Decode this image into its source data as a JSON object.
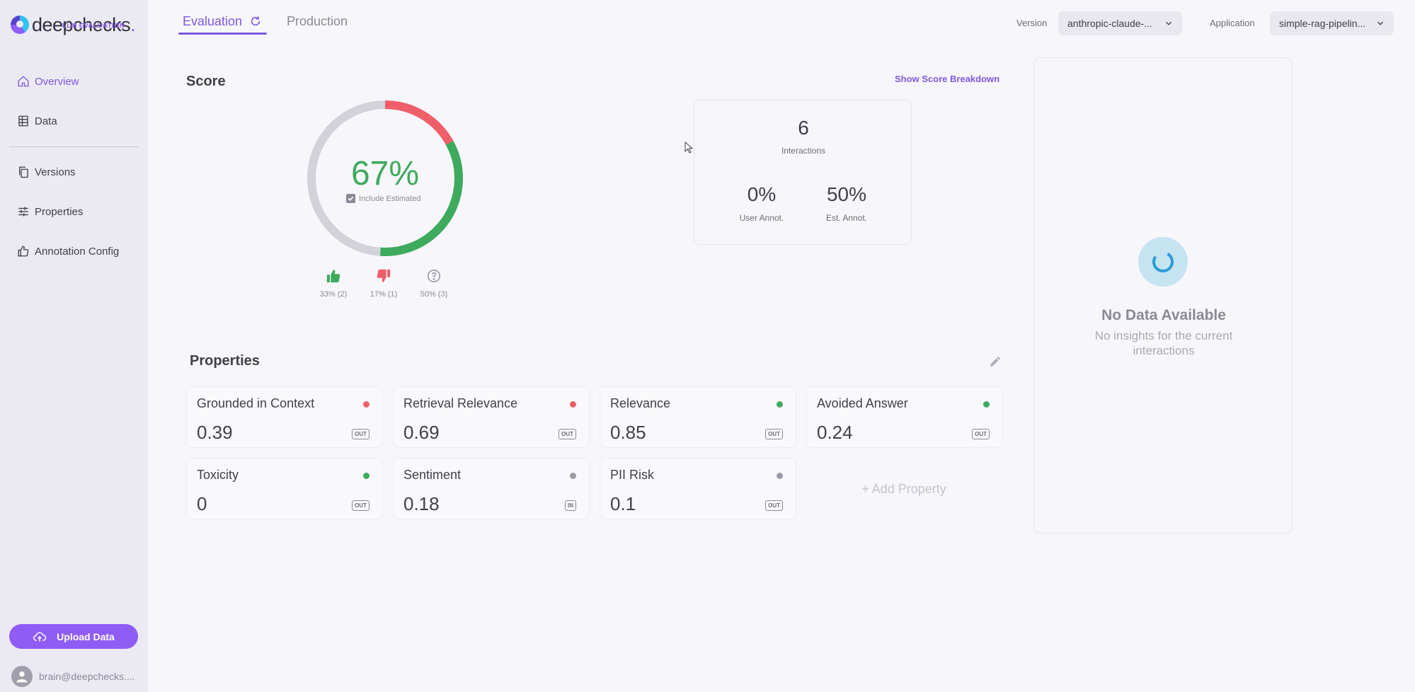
{
  "brand": {
    "name": "deepchecks",
    "dot": ".",
    "subtitle": "LLM EVALUATION"
  },
  "sidebar": {
    "items": [
      {
        "label": "Overview",
        "icon": "home-icon",
        "active": true
      },
      {
        "label": "Data",
        "icon": "table-icon"
      },
      {
        "label": "Versions",
        "icon": "copy-icon"
      },
      {
        "label": "Properties",
        "icon": "sliders-icon"
      },
      {
        "label": "Annotation Config",
        "icon": "thumbs-up-icon"
      }
    ],
    "upload_label": "Upload Data",
    "user_email": "brain@deepchecks...."
  },
  "tabs": {
    "evaluation": "Evaluation",
    "production": "Production"
  },
  "filters": {
    "version_label": "Version",
    "version_value": "anthropic-claude-...",
    "application_label": "Application",
    "application_value": "simple-rag-pipelin..."
  },
  "score": {
    "title": "Score",
    "breakdown_link": "Show Score Breakdown",
    "percent_text": "67%",
    "include_estimated_label": "Include Estimated",
    "segments": {
      "good": 0.33,
      "estimated_good": 0.34,
      "bad": 0.17,
      "unknown": 0.5
    },
    "votes": {
      "good": "33% (2)",
      "bad": "17% (1)",
      "unknown": "50% (3)"
    }
  },
  "stats": {
    "interactions_value": "6",
    "interactions_label": "Interactions",
    "user_annot_value": "0%",
    "user_annot_label": "User Annot.",
    "est_annot_value": "50%",
    "est_annot_label": "Est. Annot."
  },
  "insights": {
    "title": "No Data Available",
    "subtitle": "No insights for the current interactions"
  },
  "properties": {
    "title": "Properties",
    "add_label": "+ Add Property",
    "items": [
      {
        "name": "Grounded in Context",
        "value": "0.39",
        "badge": "OUT",
        "status": "#ee5f6a"
      },
      {
        "name": "Retrieval Relevance",
        "value": "0.69",
        "badge": "OUT",
        "status": "#ee5f6a"
      },
      {
        "name": "Relevance",
        "value": "0.85",
        "badge": "OUT",
        "status": "#3eaa5e"
      },
      {
        "name": "Avoided Answer",
        "value": "0.24",
        "badge": "OUT",
        "status": "#3eaa5e"
      },
      {
        "name": "Toxicity",
        "value": "0",
        "badge": "OUT",
        "status": "#3eaa5e"
      },
      {
        "name": "Sentiment",
        "value": "0.18",
        "badge": "IN",
        "status": "#9b9aa6"
      },
      {
        "name": "PII Risk",
        "value": "0.1",
        "badge": "OUT",
        "status": "#9b9aa6"
      }
    ]
  },
  "colors": {
    "accent": "#7f56e0",
    "good": "#3eaa5e",
    "bad": "#ee5f6a",
    "neutral": "#d3d2db"
  }
}
